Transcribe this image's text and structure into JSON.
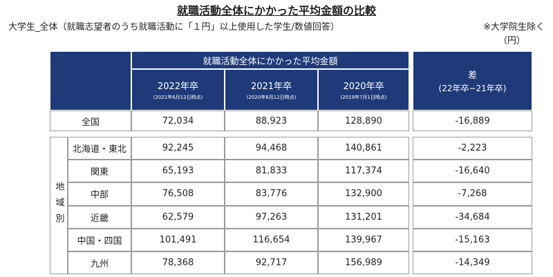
{
  "header": {
    "title": "就職活動全体にかかった平均金額の比較",
    "subtitle": "大学生_全体（就職志望者のうち就職活動に「１円」以上使用した学生/数値回答）",
    "note": "※大学院生除く",
    "unit": "（円）"
  },
  "table": {
    "header_group": "就職活動全体にかかった平均金額",
    "diff_header": {
      "label": "差",
      "sub": "(22年卒−21年卒)"
    },
    "columns": [
      {
        "year": "2022年卒",
        "date": "(2021年6月12日時点)"
      },
      {
        "year": "2021年卒",
        "date": "(2020年6月12日時点)"
      },
      {
        "year": "2020年卒",
        "date": "(2019年7月1日時点)"
      }
    ],
    "national": {
      "label": "全国",
      "values": [
        "72,034",
        "88,923",
        "128,890",
        "-16,889"
      ]
    },
    "region_label": "地域別",
    "regions": [
      {
        "name": "北海道・東北",
        "values": [
          "92,245",
          "94,468",
          "140,861",
          "-2,223"
        ]
      },
      {
        "name": "関東",
        "values": [
          "65,193",
          "81,833",
          "117,374",
          "-16,640"
        ]
      },
      {
        "name": "中部",
        "values": [
          "76,508",
          "83,776",
          "132,900",
          "-7,268"
        ]
      },
      {
        "name": "近畿",
        "values": [
          "62,579",
          "97,263",
          "131,201",
          "-34,684"
        ]
      },
      {
        "name": "中国・四国",
        "values": [
          "101,491",
          "116,654",
          "139,967",
          "-15,163"
        ]
      },
      {
        "name": "九州",
        "values": [
          "78,368",
          "92,717",
          "156,989",
          "-14,349"
        ]
      }
    ]
  }
}
